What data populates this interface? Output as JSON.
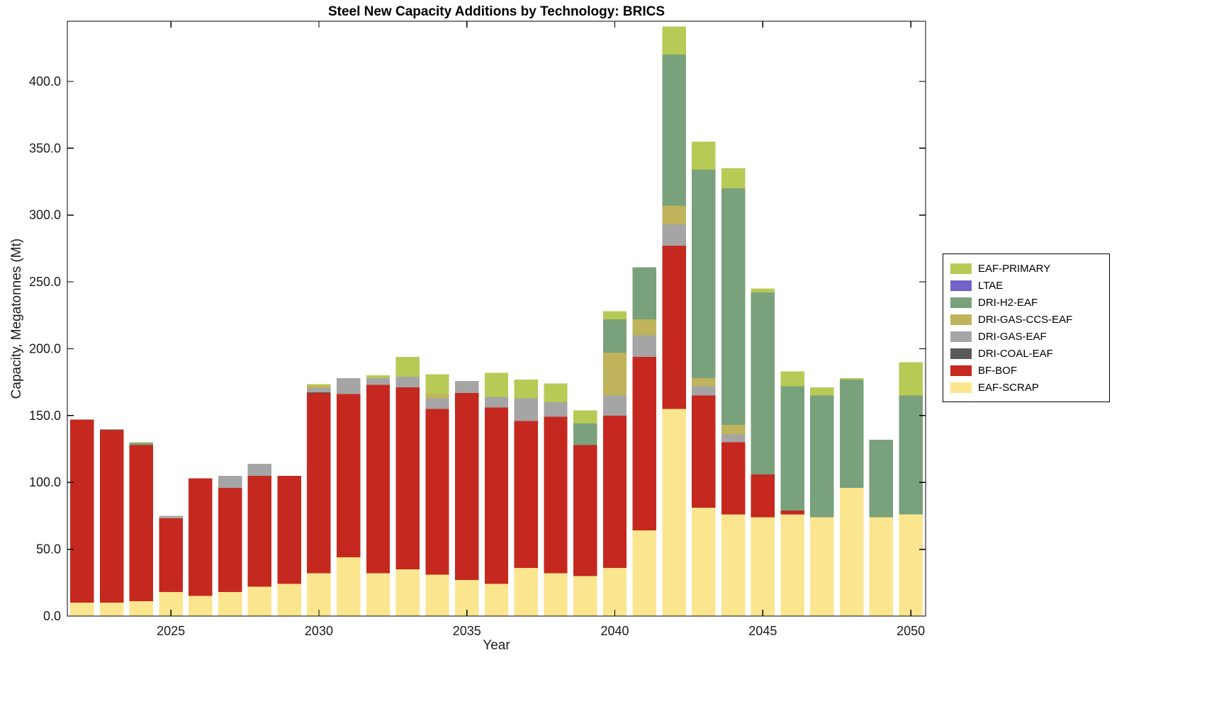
{
  "figure": {
    "title": "Steel New Capacity Additions by Technology: BRICS",
    "xlabel": "Year",
    "ylabel": "Capacity, Megatonnes (Mt)"
  },
  "chart_data": {
    "type": "bar",
    "stacked": true,
    "title": "Steel New Capacity Additions by Technology: BRICS",
    "xlabel": "Year",
    "ylabel": "Capacity, Megatonnes (Mt)",
    "grid": false,
    "legend_position": "right-outside",
    "stack_order": "bottom-to-top",
    "ylim": [
      0,
      445
    ],
    "x": [
      2022,
      2023,
      2024,
      2025,
      2026,
      2027,
      2028,
      2029,
      2030,
      2031,
      2032,
      2033,
      2034,
      2035,
      2036,
      2037,
      2038,
      2039,
      2040,
      2041,
      2042,
      2043,
      2044,
      2045,
      2046,
      2047,
      2048,
      2049,
      2050
    ],
    "x_ticks": [
      2025,
      2030,
      2035,
      2040,
      2045,
      2050
    ],
    "x_tick_labels": [
      "2025",
      "2030",
      "2035",
      "2040",
      "2045",
      "2050"
    ],
    "y_ticks": [
      0,
      50,
      100,
      150,
      200,
      250,
      300,
      350,
      400
    ],
    "y_tick_labels": [
      "0.0",
      "50.0",
      "100.0",
      "150.0",
      "200.0",
      "250.0",
      "300.0",
      "350.0",
      "400.0"
    ],
    "series": [
      {
        "name": "EAF-SCRAP",
        "color": "#FBE58F",
        "values": [
          10,
          10,
          11,
          18,
          15,
          18,
          22,
          24,
          32,
          44,
          32,
          35,
          31,
          27,
          24,
          36,
          32,
          30,
          36,
          64,
          155,
          81,
          76,
          74,
          76,
          74,
          96,
          74,
          76
        ]
      },
      {
        "name": "BF-BOF",
        "color": "#C5281E",
        "values": [
          137,
          129,
          117,
          55,
          88,
          78,
          83,
          81,
          135,
          122,
          141,
          136,
          124,
          140,
          132,
          110,
          117,
          98,
          114,
          130,
          122,
          84,
          54,
          32,
          3,
          0,
          0,
          0,
          0
        ]
      },
      {
        "name": "DRI-COAL-EAF",
        "color": "#595959",
        "values": [
          0,
          0.5,
          0,
          0,
          0,
          0,
          0,
          0,
          0.5,
          0,
          0,
          0,
          0,
          0,
          0,
          0,
          0,
          0,
          0,
          0,
          0,
          0,
          0,
          0,
          0,
          0,
          0,
          0,
          0
        ]
      },
      {
        "name": "DRI-GAS-EAF",
        "color": "#A5A5A5",
        "values": [
          0,
          0,
          0,
          2,
          0,
          9,
          9,
          0,
          3,
          12,
          5,
          8,
          8,
          9,
          8,
          17,
          11,
          0,
          15,
          16,
          16,
          7,
          6,
          0,
          0,
          0,
          0,
          0,
          0
        ]
      },
      {
        "name": "DRI-GAS-CCS-EAF",
        "color": "#BFB35C",
        "values": [
          0,
          0,
          0,
          0,
          0,
          0,
          0,
          0,
          2,
          0,
          0,
          0,
          3,
          0,
          0,
          0,
          0,
          0,
          32,
          12,
          14,
          6,
          7,
          0,
          0,
          0,
          0,
          0,
          0
        ]
      },
      {
        "name": "DRI-H2-EAF",
        "color": "#78A17C",
        "values": [
          0,
          0,
          1.5,
          0,
          0,
          0,
          0,
          0,
          0,
          0,
          0,
          0,
          0,
          0,
          0,
          0,
          0,
          16,
          25,
          39,
          113,
          156,
          177,
          136,
          93,
          91,
          81,
          58,
          89
        ]
      },
      {
        "name": "LTAE",
        "color": "#7262C9",
        "values": [
          0,
          0,
          0,
          0,
          0,
          0,
          0,
          0,
          0,
          0,
          0,
          0,
          0,
          0,
          0,
          0,
          0,
          0,
          0,
          0,
          0,
          0,
          0,
          0,
          0,
          0,
          0,
          0,
          0
        ]
      },
      {
        "name": "EAF-PRIMARY",
        "color": "#B7CA55",
        "values": [
          0,
          0,
          0.5,
          0,
          0,
          0,
          0,
          0,
          1,
          0,
          2,
          15,
          15,
          0,
          18,
          14,
          14,
          10,
          6,
          0,
          21,
          21,
          15,
          3,
          11,
          6,
          1,
          0,
          25
        ]
      }
    ]
  }
}
